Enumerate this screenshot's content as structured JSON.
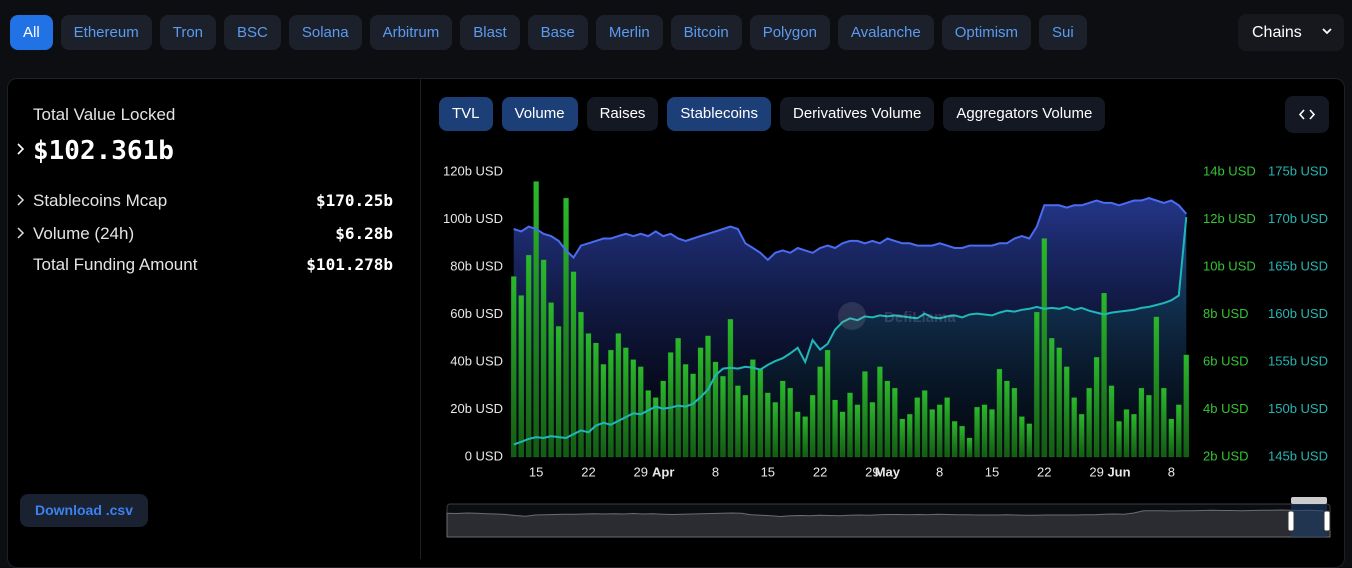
{
  "chain_tabs": [
    {
      "label": "All",
      "active": true
    },
    {
      "label": "Ethereum",
      "active": false
    },
    {
      "label": "Tron",
      "active": false
    },
    {
      "label": "BSC",
      "active": false
    },
    {
      "label": "Solana",
      "active": false
    },
    {
      "label": "Arbitrum",
      "active": false
    },
    {
      "label": "Blast",
      "active": false
    },
    {
      "label": "Base",
      "active": false
    },
    {
      "label": "Merlin",
      "active": false
    },
    {
      "label": "Bitcoin",
      "active": false
    },
    {
      "label": "Polygon",
      "active": false
    },
    {
      "label": "Avalanche",
      "active": false
    },
    {
      "label": "Optimism",
      "active": false
    },
    {
      "label": "Sui",
      "active": false
    }
  ],
  "chains_dropdown": "Chains",
  "summary": {
    "title": "Total Value Locked",
    "value": "$102.361b",
    "rows": [
      {
        "label": "Stablecoins Mcap",
        "value": "$170.25b",
        "expandable": true
      },
      {
        "label": "Volume (24h)",
        "value": "$6.28b",
        "expandable": true
      },
      {
        "label": "Total Funding Amount",
        "value": "$101.278b",
        "expandable": false
      }
    ]
  },
  "download_button": "Download .csv",
  "chart_tabs": [
    {
      "label": "TVL",
      "active": true
    },
    {
      "label": "Volume",
      "active": true
    },
    {
      "label": "Raises",
      "active": false
    },
    {
      "label": "Stablecoins",
      "active": true
    },
    {
      "label": "Derivatives Volume",
      "active": false
    },
    {
      "label": "Aggregators Volume",
      "active": false
    }
  ],
  "chart_data": {
    "type": "combo",
    "watermark": "DefiLlama",
    "categories": [
      null,
      null,
      null,
      "15",
      null,
      null,
      null,
      null,
      null,
      null,
      "22",
      null,
      null,
      null,
      null,
      null,
      null,
      "29",
      null,
      null,
      "Apr",
      null,
      null,
      null,
      null,
      null,
      null,
      "8",
      null,
      null,
      null,
      null,
      null,
      null,
      "15",
      null,
      null,
      null,
      null,
      null,
      null,
      "22",
      null,
      null,
      null,
      null,
      null,
      null,
      "29",
      null,
      "May",
      null,
      null,
      null,
      null,
      null,
      null,
      "8",
      null,
      null,
      null,
      null,
      null,
      null,
      "15",
      null,
      null,
      null,
      null,
      null,
      null,
      "22",
      null,
      null,
      null,
      null,
      null,
      null,
      "29",
      null,
      null,
      "Jun",
      null,
      null,
      null,
      null,
      null,
      null,
      "8",
      null,
      null
    ],
    "ylim": [
      0,
      120
    ],
    "yticks": [
      {
        "value": 0,
        "label": "0 USD"
      },
      {
        "value": 20,
        "label": "20b USD"
      },
      {
        "value": 40,
        "label": "40b USD"
      },
      {
        "value": 60,
        "label": "60b USD"
      },
      {
        "value": 80,
        "label": "80b USD"
      },
      {
        "value": 100,
        "label": "100b USD"
      },
      {
        "value": 120,
        "label": "120b USD"
      }
    ],
    "y2lim": [
      2,
      14
    ],
    "y2ticks": [
      {
        "value": 2,
        "label": "2b USD"
      },
      {
        "value": 4,
        "label": "4b USD"
      },
      {
        "value": 6,
        "label": "6b USD"
      },
      {
        "value": 8,
        "label": "8b USD"
      },
      {
        "value": 10,
        "label": "10b USD"
      },
      {
        "value": 12,
        "label": "12b USD"
      },
      {
        "value": 14,
        "label": "14b USD"
      }
    ],
    "y3lim": [
      145,
      175
    ],
    "y3ticks": [
      {
        "value": 145,
        "label": "145b USD"
      },
      {
        "value": 150,
        "label": "150b USD"
      },
      {
        "value": 155,
        "label": "155b USD"
      },
      {
        "value": 160,
        "label": "160b USD"
      },
      {
        "value": 165,
        "label": "165b USD"
      },
      {
        "value": 170,
        "label": "170b USD"
      },
      {
        "value": 175,
        "label": "175b USD"
      }
    ],
    "y2color": "#34c434",
    "y3color": "#26b5b5",
    "series": [
      {
        "type": "area",
        "axis": "y",
        "color": "#4a6cf0",
        "values": [
          96,
          95,
          97,
          96,
          94,
          93,
          91,
          87,
          84,
          89,
          90,
          91,
          92,
          92,
          93,
          94,
          93,
          94,
          93,
          95,
          93,
          94,
          92,
          91,
          92,
          93,
          94,
          95,
          96,
          97,
          96,
          90,
          88,
          86,
          83,
          86,
          87,
          86,
          88,
          87,
          86,
          88,
          89,
          88,
          90,
          91,
          91,
          90,
          91,
          90,
          92,
          91,
          90,
          90,
          89,
          89,
          89,
          90,
          89,
          88,
          88,
          89,
          89,
          89,
          89,
          90,
          90,
          92,
          93,
          92,
          97,
          106,
          106,
          106,
          105,
          106,
          106,
          107,
          108,
          107,
          107,
          106,
          107,
          108,
          108,
          109,
          108,
          107,
          108,
          106,
          102.361
        ]
      },
      {
        "type": "bar",
        "axis": "y2",
        "color": "#22a822",
        "values": [
          9.6,
          8.8,
          10.5,
          13.6,
          10.3,
          8.5,
          7.5,
          12.9,
          9.8,
          8.1,
          7.2,
          6.8,
          5.9,
          6.5,
          7.2,
          6.6,
          6.1,
          5.8,
          4.8,
          4.5,
          5.2,
          6.4,
          7.0,
          5.9,
          5.5,
          6.6,
          7.1,
          6.0,
          5.4,
          7.8,
          5.0,
          4.6,
          6.1,
          5.7,
          4.7,
          4.3,
          5.2,
          4.9,
          3.9,
          3.7,
          4.6,
          5.8,
          6.5,
          4.4,
          3.9,
          4.7,
          4.2,
          5.6,
          4.3,
          5.8,
          5.2,
          4.9,
          3.6,
          3.8,
          4.5,
          4.8,
          4.0,
          4.2,
          4.5,
          3.5,
          3.3,
          2.8,
          4.1,
          4.2,
          4.0,
          5.7,
          5.2,
          4.9,
          3.7,
          3.4,
          8.1,
          11.2,
          7.0,
          6.6,
          5.8,
          4.5,
          3.8,
          4.9,
          6.2,
          8.9,
          5.0,
          3.5,
          4.0,
          3.8,
          4.9,
          4.6,
          7.9,
          4.9,
          3.6,
          4.2,
          6.3
        ]
      },
      {
        "type": "line",
        "axis": "y3",
        "color": "#1fb8b8",
        "values": [
          146.3,
          146.6,
          146.9,
          147.1,
          147.0,
          147.2,
          147.1,
          147.0,
          147.4,
          147.8,
          147.6,
          148.3,
          148.6,
          148.4,
          148.8,
          149.2,
          149.6,
          149.5,
          149.9,
          150.3,
          150.1,
          150.2,
          150.4,
          150.3,
          150.6,
          151.3,
          152.1,
          153.6,
          154.3,
          154.4,
          154.3,
          154.5,
          154.4,
          154.2,
          154.7,
          155.1,
          155.4,
          155.9,
          156.5,
          155.0,
          157.3,
          156.3,
          156.9,
          158.4,
          159.2,
          159.6,
          159.4,
          159.8,
          159.7,
          159.9,
          159.8,
          159.9,
          159.8,
          159.7,
          159.6,
          160.1,
          159.7,
          159.6,
          159.8,
          159.9,
          159.7,
          160.0,
          160.1,
          160.0,
          159.9,
          160.2,
          160.4,
          160.3,
          160.5,
          160.6,
          160.8,
          160.6,
          160.7,
          160.6,
          160.8,
          160.5,
          160.7,
          160.4,
          160.2,
          160.0,
          160.2,
          160.3,
          160.4,
          160.5,
          160.7,
          160.8,
          161.0,
          161.2,
          161.5,
          162.0,
          170.25
        ]
      }
    ]
  }
}
